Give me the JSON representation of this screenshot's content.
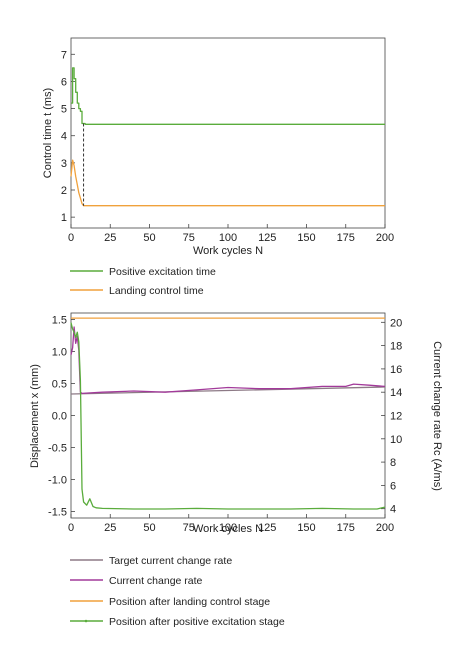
{
  "chart_data": [
    {
      "type": "line",
      "xlabel": "Work cycles N",
      "ylabel": "Control time t (ms)",
      "xlim": [
        0,
        200
      ],
      "ylim": [
        0.6,
        7.6
      ],
      "xticks": [
        "0",
        "25",
        "50",
        "75",
        "100",
        "125",
        "150",
        "175",
        "200"
      ],
      "yticks": [
        "1",
        "2",
        "3",
        "4",
        "5",
        "6",
        "7"
      ],
      "grid": false,
      "legend_position": "below",
      "series": [
        {
          "name": "Positive excitation time",
          "color": "#5aac3c",
          "x": [
            0,
            1,
            1,
            2,
            2,
            3,
            3,
            4,
            4,
            5,
            5,
            6,
            6,
            7,
            7,
            9,
            9,
            200
          ],
          "y": [
            5.2,
            5.2,
            6.5,
            6.5,
            6.1,
            6.1,
            5.6,
            5.6,
            5.2,
            5.2,
            5.0,
            5.0,
            4.9,
            4.9,
            4.45,
            4.45,
            4.42,
            4.42
          ]
        },
        {
          "name": "Landing control time",
          "color": "#f0a13c",
          "x": [
            0,
            1,
            2,
            3,
            4,
            5,
            6,
            7,
            8,
            200
          ],
          "y": [
            2.5,
            3.1,
            2.9,
            2.5,
            2.2,
            1.9,
            1.7,
            1.5,
            1.42,
            1.42
          ]
        }
      ]
    },
    {
      "type": "line",
      "xlabel": "Work cycles N",
      "ylabel": "Displacement x (mm)",
      "y2label": "Current change rate Rc (A/ms)",
      "xlim": [
        0,
        200
      ],
      "ylim": [
        -1.6,
        1.6
      ],
      "y2lim": [
        3.2,
        20.8
      ],
      "xticks": [
        "0",
        "25",
        "50",
        "75",
        "100",
        "125",
        "150",
        "175",
        "200"
      ],
      "yticks": [
        "-1.5",
        "-1.0",
        "-0.5",
        "0.0",
        "0.5",
        "1.0",
        "1.5"
      ],
      "y2ticks": [
        "4",
        "6",
        "8",
        "10",
        "12",
        "14",
        "16",
        "18",
        "20"
      ],
      "grid": false,
      "legend_position": "below",
      "series": [
        {
          "name": "Target current change rate",
          "axis": "right",
          "color": "#8d7a86",
          "x": [
            0,
            200
          ],
          "y": [
            13.85,
            14.45
          ]
        },
        {
          "name": "Current change rate",
          "axis": "right",
          "color": "#a23a9a",
          "x": [
            0,
            1,
            2,
            3,
            4,
            5,
            6,
            7,
            20,
            40,
            60,
            80,
            100,
            120,
            140,
            160,
            175,
            180,
            190,
            200
          ],
          "y": [
            17.2,
            17.8,
            19.6,
            18.2,
            18.8,
            17.6,
            14.0,
            13.9,
            14.0,
            14.1,
            14.0,
            14.2,
            14.4,
            14.3,
            14.3,
            14.5,
            14.5,
            14.7,
            14.6,
            14.5
          ]
        },
        {
          "name": "Position after landing control stage",
          "axis": "left",
          "color": "#f0a13c",
          "x": [
            0,
            200
          ],
          "y": [
            1.52,
            1.52
          ]
        },
        {
          "name": "Position after positive excitation stage",
          "axis": "left",
          "color": "#5aac3c",
          "x": [
            0,
            1,
            2,
            3,
            4,
            5,
            6,
            7,
            8,
            10,
            12,
            14,
            16,
            20,
            40,
            60,
            80,
            100,
            120,
            140,
            160,
            180,
            195,
            200
          ],
          "y": [
            1.45,
            1.35,
            1.3,
            1.22,
            1.3,
            1.15,
            0.55,
            -1.15,
            -1.35,
            -1.4,
            -1.3,
            -1.42,
            -1.44,
            -1.45,
            -1.46,
            -1.46,
            -1.45,
            -1.46,
            -1.46,
            -1.46,
            -1.45,
            -1.46,
            -1.46,
            -1.43
          ]
        }
      ]
    }
  ]
}
